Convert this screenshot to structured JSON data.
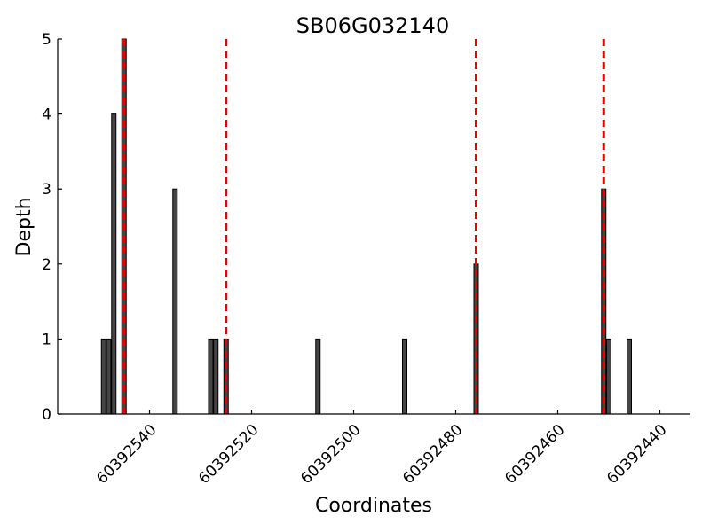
{
  "chart_data": {
    "type": "bar",
    "title": "SB06G032140",
    "xlabel": "Coordinates",
    "ylabel": "Depth",
    "x_reversed": true,
    "xlim": [
      60392558,
      60392434
    ],
    "ylim": [
      0,
      5
    ],
    "x_ticks": [
      60392540,
      60392520,
      60392500,
      60392480,
      60392460,
      60392440
    ],
    "y_ticks": [
      0,
      1,
      2,
      3,
      4,
      5
    ],
    "bars": [
      {
        "x": 60392549,
        "value": 1
      },
      {
        "x": 60392548,
        "value": 1
      },
      {
        "x": 60392547,
        "value": 4
      },
      {
        "x": 60392545,
        "value": 5
      },
      {
        "x": 60392535,
        "value": 3
      },
      {
        "x": 60392528,
        "value": 1
      },
      {
        "x": 60392527,
        "value": 1
      },
      {
        "x": 60392525,
        "value": 1
      },
      {
        "x": 60392507,
        "value": 1
      },
      {
        "x": 60392490,
        "value": 1
      },
      {
        "x": 60392476,
        "value": 2
      },
      {
        "x": 60392451,
        "value": 3
      },
      {
        "x": 60392450,
        "value": 1
      },
      {
        "x": 60392446,
        "value": 1
      }
    ],
    "reference_lines": [
      60392545,
      60392525,
      60392476,
      60392451
    ],
    "colors": {
      "bar": "#454545",
      "reference_line": "#ee0000"
    },
    "grid": false
  }
}
